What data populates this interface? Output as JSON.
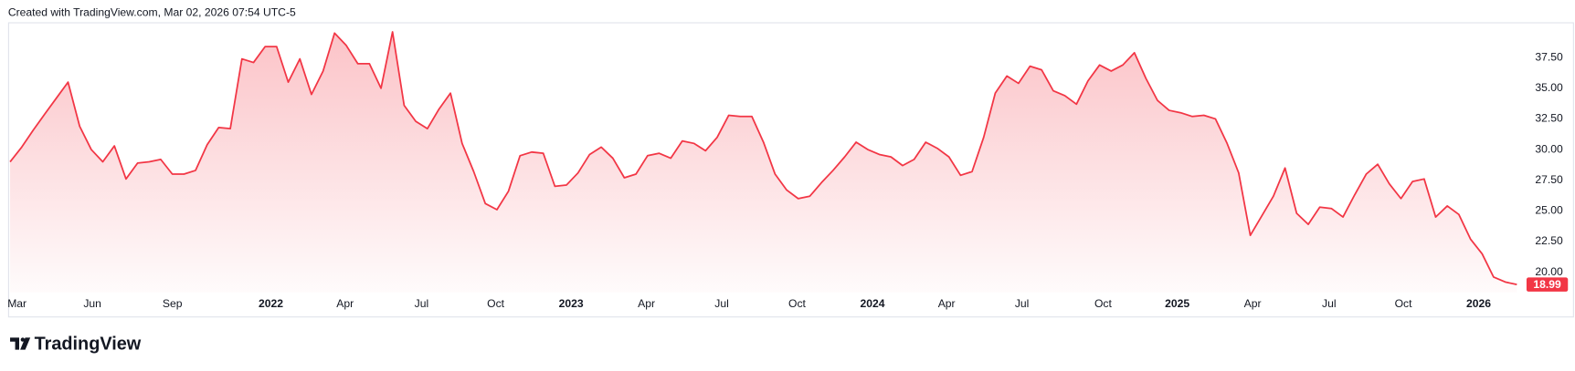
{
  "header": "Created with TradingView.com, Mar 02, 2026 07:54 UTC-5",
  "brand": "TradingView",
  "chart_data": {
    "type": "area",
    "series": [
      {
        "color": "#f23645",
        "values": [
          29.0,
          30.2,
          31.6,
          32.9,
          34.2,
          35.5,
          31.9,
          30.0,
          29.0,
          30.3,
          27.6,
          28.9,
          29.0,
          29.2,
          28.0,
          28.0,
          28.3,
          30.4,
          31.8,
          31.7,
          37.4,
          37.1,
          38.4,
          38.4,
          35.5,
          37.4,
          34.5,
          36.4,
          39.5,
          38.5,
          37.0,
          37.0,
          35.0,
          39.6,
          33.6,
          32.3,
          31.7,
          33.3,
          34.6,
          30.5,
          28.2,
          25.6,
          25.1,
          26.6,
          29.5,
          29.8,
          29.7,
          27.0,
          27.1,
          28.1,
          29.6,
          30.2,
          29.3,
          27.7,
          28.0,
          29.5,
          29.7,
          29.3,
          30.7,
          30.5,
          29.9,
          31.0,
          32.8,
          32.7,
          32.7,
          30.6,
          28.0,
          26.7,
          26.0,
          26.2,
          27.3,
          28.3,
          29.4,
          30.6,
          30.0,
          29.6,
          29.4,
          28.7,
          29.2,
          30.6,
          30.1,
          29.4,
          27.9,
          28.2,
          31.0,
          34.6,
          36.0,
          35.4,
          36.8,
          36.5,
          34.8,
          34.4,
          33.7,
          35.6,
          36.9,
          36.4,
          36.9,
          37.9,
          35.8,
          34.0,
          33.2,
          33.0,
          32.7,
          32.8,
          32.5,
          30.5,
          28.1,
          23.0,
          24.6,
          26.2,
          28.5,
          24.8,
          23.9,
          25.3,
          25.2,
          24.5,
          26.3,
          28.0,
          28.8,
          27.2,
          26.0,
          27.4,
          27.6,
          24.5,
          25.4,
          24.7,
          22.7,
          21.5,
          19.6,
          19.2,
          18.99
        ]
      }
    ],
    "xlim": [
      0,
      130
    ],
    "xticks": [
      {
        "value": 0.6,
        "label": "Mar"
      },
      {
        "value": 7.1,
        "label": "Jun"
      },
      {
        "value": 14.0,
        "label": "Sep"
      },
      {
        "value": 22.5,
        "label": "2022"
      },
      {
        "value": 28.9,
        "label": "Apr"
      },
      {
        "value": 35.5,
        "label": "Jul"
      },
      {
        "value": 41.9,
        "label": "Oct"
      },
      {
        "value": 48.4,
        "label": "2023"
      },
      {
        "value": 54.9,
        "label": "Apr"
      },
      {
        "value": 61.4,
        "label": "Jul"
      },
      {
        "value": 67.9,
        "label": "Oct"
      },
      {
        "value": 74.4,
        "label": "2024"
      },
      {
        "value": 80.8,
        "label": "Apr"
      },
      {
        "value": 87.3,
        "label": "Jul"
      },
      {
        "value": 94.3,
        "label": "Oct"
      },
      {
        "value": 100.7,
        "label": "2025"
      },
      {
        "value": 107.2,
        "label": "Apr"
      },
      {
        "value": 113.8,
        "label": "Jul"
      },
      {
        "value": 120.2,
        "label": "Oct"
      },
      {
        "value": 126.7,
        "label": "2026"
      }
    ],
    "ylim": [
      18.36,
      40.38
    ],
    "yticks": [
      {
        "value": 20,
        "label": "20.00"
      },
      {
        "value": 22.5,
        "label": "22.50"
      },
      {
        "value": 25,
        "label": "25.00"
      },
      {
        "value": 27.5,
        "label": "27.50"
      },
      {
        "value": 30,
        "label": "30.00"
      },
      {
        "value": 32.5,
        "label": "32.50"
      },
      {
        "value": 35,
        "label": "35.00"
      },
      {
        "value": 37.5,
        "label": "37.50"
      }
    ],
    "grid": false
  }
}
